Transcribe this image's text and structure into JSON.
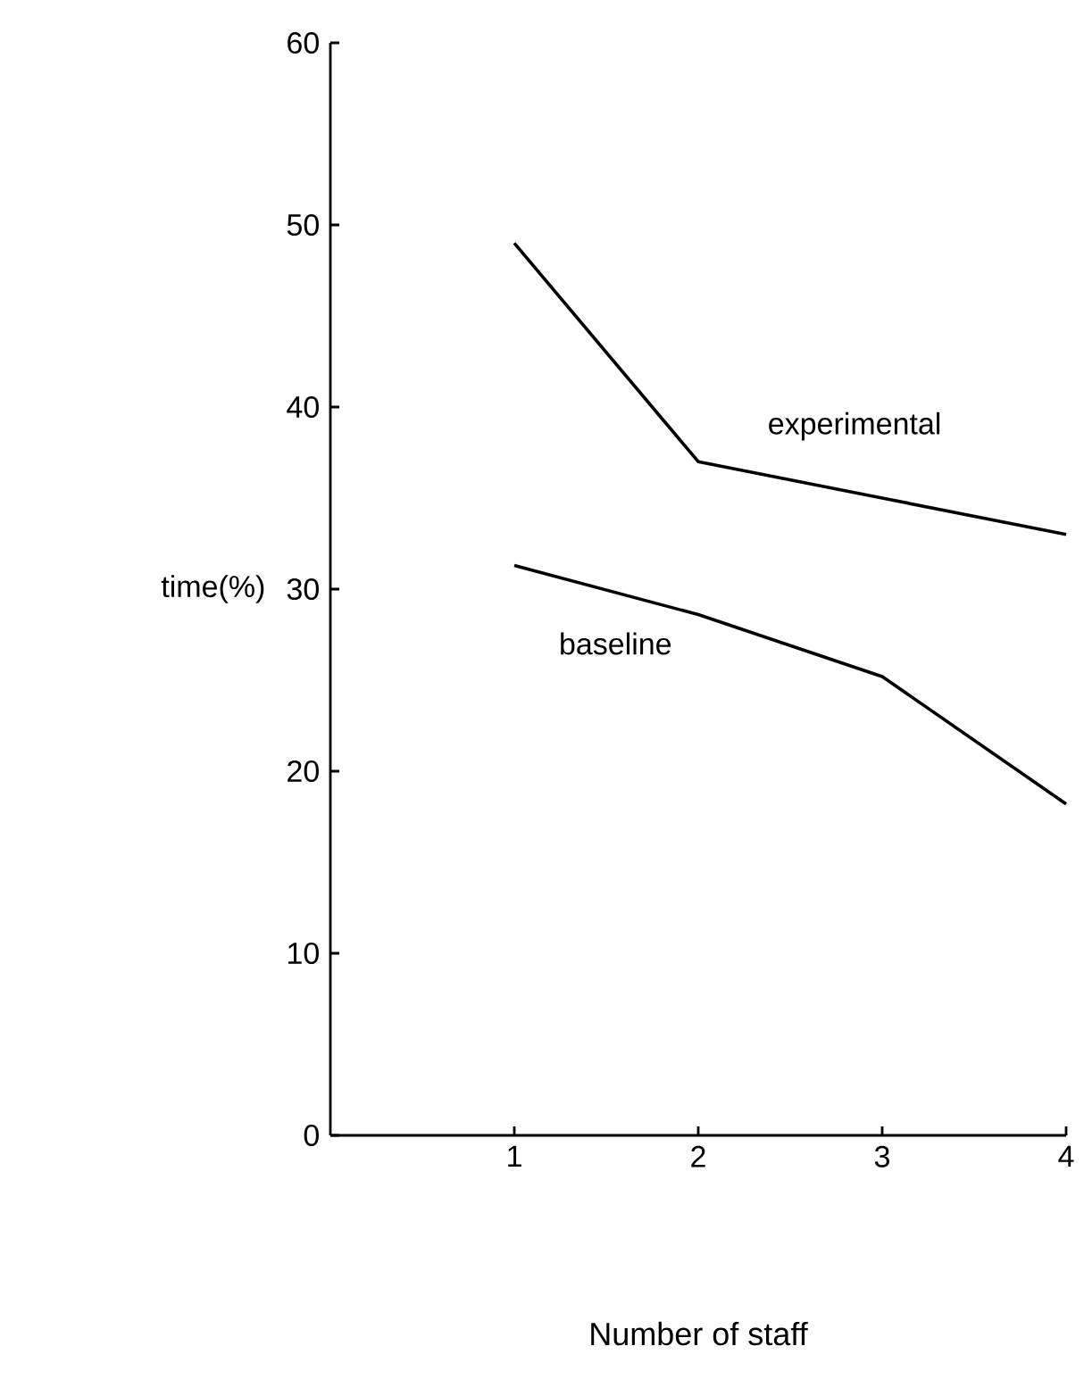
{
  "chart_data": {
    "type": "line",
    "xlabel": "Number of staff",
    "ylabel": "time(%)",
    "x": [
      1,
      2,
      3,
      4
    ],
    "xlim": [
      0,
      4
    ],
    "xticks": [
      1,
      2,
      3,
      4
    ],
    "ylim": [
      0,
      60
    ],
    "yticks": [
      0,
      10,
      20,
      30,
      40,
      50,
      60
    ],
    "series": [
      {
        "name": "experimental",
        "color": "#000000",
        "values": [
          49,
          37,
          35,
          33
        ]
      },
      {
        "name": "baseline",
        "color": "#000000",
        "values": [
          31.3,
          28.6,
          25.2,
          18.2
        ]
      }
    ],
    "grid": false,
    "marker": "none",
    "line_style": "solid"
  }
}
